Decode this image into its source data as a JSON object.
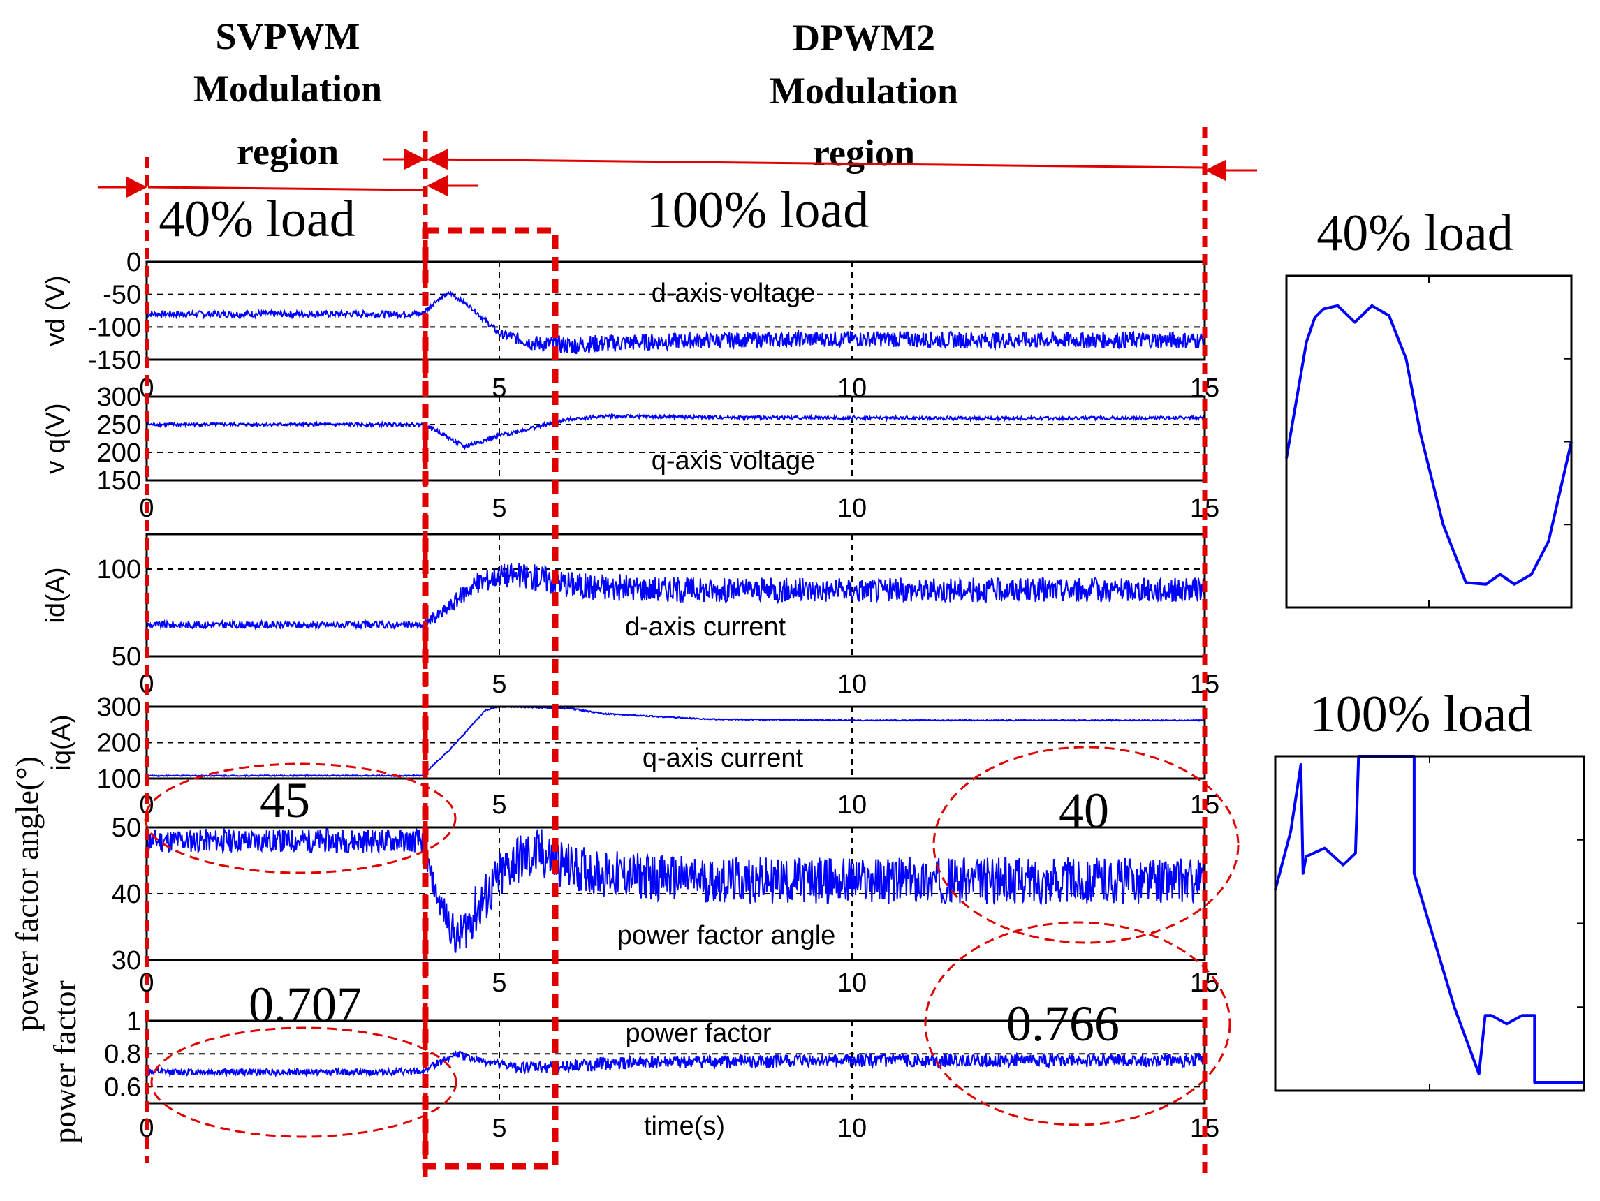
{
  "header": {
    "svpwm_line1": "SVPWM",
    "svpwm_line2": "Modulation",
    "svpwm_line3": "region",
    "dpwm_line1": "DPWM2",
    "dpwm_line2": "Modulation",
    "dpwm_line3": "region",
    "load_left": "40% load",
    "load_right": "100% load"
  },
  "chart_data": [
    {
      "type": "line",
      "id": "vd",
      "title": "d-axis voltage",
      "ylabel": "vd (V)",
      "ylim": [
        -150,
        0
      ],
      "yticks": [
        0,
        -50,
        -100,
        -150
      ],
      "xlim": [
        0,
        15
      ],
      "xticks": [
        0,
        5,
        10,
        15
      ],
      "series_color": "#0000ff",
      "x": [
        0,
        3.9,
        4.1,
        4.3,
        4.6,
        5.0,
        5.5,
        6.0,
        6.5,
        8,
        10,
        12,
        15
      ],
      "values": [
        -80,
        -80,
        -60,
        -48,
        -70,
        -110,
        -125,
        -128,
        -125,
        -120,
        -118,
        -120,
        -120
      ],
      "noise": [
        5,
        5,
        3,
        3,
        3,
        6,
        12,
        14,
        14,
        12,
        12,
        13,
        13
      ]
    },
    {
      "type": "line",
      "id": "vq",
      "title": "q-axis voltage",
      "ylabel": "v q(V)",
      "ylim": [
        150,
        300
      ],
      "yticks": [
        300,
        250,
        200,
        150
      ],
      "xlim": [
        0,
        15
      ],
      "xticks": [
        0,
        5,
        10,
        15
      ],
      "series_color": "#0000ff",
      "x": [
        0,
        3.9,
        4.1,
        4.5,
        5.0,
        6.0,
        6.5,
        8,
        10,
        12,
        15
      ],
      "values": [
        250,
        250,
        240,
        210,
        230,
        260,
        265,
        263,
        262,
        261,
        262
      ],
      "noise": [
        3,
        3,
        3,
        4,
        4,
        3,
        3,
        3,
        3,
        3,
        3
      ]
    },
    {
      "type": "line",
      "id": "id",
      "title": "d-axis current",
      "ylabel": "id(A)",
      "ylim": [
        50,
        120
      ],
      "yticks": [
        100,
        50
      ],
      "xlim": [
        0,
        15
      ],
      "xticks": [
        0,
        5,
        10,
        15
      ],
      "series_color": "#0000ff",
      "x": [
        0,
        3.9,
        4.2,
        4.6,
        5.0,
        5.6,
        6.2,
        8,
        10,
        12,
        15
      ],
      "values": [
        68,
        68,
        75,
        90,
        97,
        95,
        90,
        88,
        88,
        88,
        88
      ],
      "noise": [
        2,
        2,
        4,
        6,
        7,
        8,
        8,
        7,
        7,
        7,
        7
      ]
    },
    {
      "type": "line",
      "id": "iq",
      "title": "q-axis current",
      "ylabel": "iq(A)",
      "ylim": [
        100,
        300
      ],
      "yticks": [
        300,
        200,
        100
      ],
      "xlim": [
        0,
        15
      ],
      "xticks": [
        0,
        5,
        10,
        15
      ],
      "series_color": "#0000ff",
      "x": [
        0,
        3.9,
        4.3,
        4.8,
        5.0,
        6.0,
        6.5,
        8,
        10,
        12,
        15
      ],
      "values": [
        108,
        108,
        180,
        290,
        300,
        295,
        280,
        265,
        262,
        262,
        262
      ],
      "noise": [
        1.5,
        1.5,
        2,
        2,
        2,
        2,
        2,
        1.5,
        1.5,
        1.5,
        1.5
      ]
    },
    {
      "type": "line",
      "id": "pfa",
      "title": "power factor angle",
      "ylabel": "power factor angle(°)",
      "ylim": [
        30,
        50
      ],
      "yticks": [
        50,
        40,
        30
      ],
      "xlim": [
        0,
        15
      ],
      "xticks": [
        0,
        5,
        10,
        15
      ],
      "series_color": "#0000ff",
      "x": [
        0,
        3.9,
        4.1,
        4.4,
        4.7,
        5.2,
        5.6,
        6.0,
        6.5,
        8,
        10,
        12,
        15
      ],
      "values": [
        48,
        48,
        40,
        33,
        38,
        45,
        46,
        44,
        43,
        42,
        42,
        42,
        42
      ],
      "noise": [
        1.8,
        1.8,
        2,
        3,
        4,
        4,
        4,
        3.5,
        3.5,
        3.5,
        3.5,
        3.5,
        3.5
      ],
      "annotations": [
        "45",
        "40"
      ]
    },
    {
      "type": "line",
      "id": "pf",
      "title": "power factor",
      "ylabel": "power factor",
      "xlabel": "time(s)",
      "ylim": [
        0.5,
        1
      ],
      "yticks": [
        1,
        0.8,
        0.6
      ],
      "xlim": [
        0,
        15
      ],
      "xticks": [
        0,
        5,
        10,
        15
      ],
      "series_color": "#0000ff",
      "x": [
        0,
        3.9,
        4.1,
        4.4,
        4.7,
        5.2,
        5.8,
        6.5,
        8,
        10,
        12,
        15
      ],
      "values": [
        0.69,
        0.69,
        0.74,
        0.8,
        0.76,
        0.72,
        0.72,
        0.74,
        0.75,
        0.76,
        0.76,
        0.76
      ],
      "noise": [
        0.02,
        0.02,
        0.02,
        0.02,
        0.02,
        0.03,
        0.04,
        0.04,
        0.04,
        0.04,
        0.04,
        0.04
      ],
      "annotations": [
        "0.707",
        "0.766"
      ]
    },
    {
      "type": "line",
      "id": "inset40",
      "title": "40% load",
      "ylim": [
        -1,
        1
      ],
      "xlim": [
        0,
        1
      ],
      "series_color": "#0000ff",
      "x": [
        0,
        0.07,
        0.1,
        0.13,
        0.18,
        0.24,
        0.3,
        0.36,
        0.42,
        0.47,
        0.55,
        0.63,
        0.7,
        0.75,
        0.8,
        0.86,
        0.92,
        0.96,
        1.0
      ],
      "values": [
        -0.1,
        0.6,
        0.75,
        0.8,
        0.82,
        0.72,
        0.82,
        0.76,
        0.5,
        0.05,
        -0.5,
        -0.85,
        -0.86,
        -0.8,
        -0.86,
        -0.8,
        -0.6,
        -0.3,
        0
      ]
    },
    {
      "type": "line",
      "id": "inset100",
      "title": "100% load",
      "ylim": [
        -1,
        1
      ],
      "xlim": [
        0,
        1
      ],
      "series_color": "#0000ff",
      "x": [
        0,
        0.05,
        0.083,
        0.09,
        0.1,
        0.16,
        0.22,
        0.26,
        0.27,
        0.27,
        0.45,
        0.45,
        0.58,
        0.66,
        0.68,
        0.7,
        0.75,
        0.8,
        0.84,
        0.84,
        0.85,
        0.85,
        1.0,
        1.0,
        1.0
      ],
      "values": [
        0.2,
        0.55,
        0.95,
        0.3,
        0.4,
        0.45,
        0.35,
        0.42,
        1.0,
        1.0,
        1.0,
        0.3,
        -0.5,
        -0.9,
        -0.55,
        -0.55,
        -0.6,
        -0.55,
        -0.55,
        -0.95,
        -0.95,
        -0.95,
        -0.95,
        -0.5,
        0.1
      ]
    }
  ]
}
